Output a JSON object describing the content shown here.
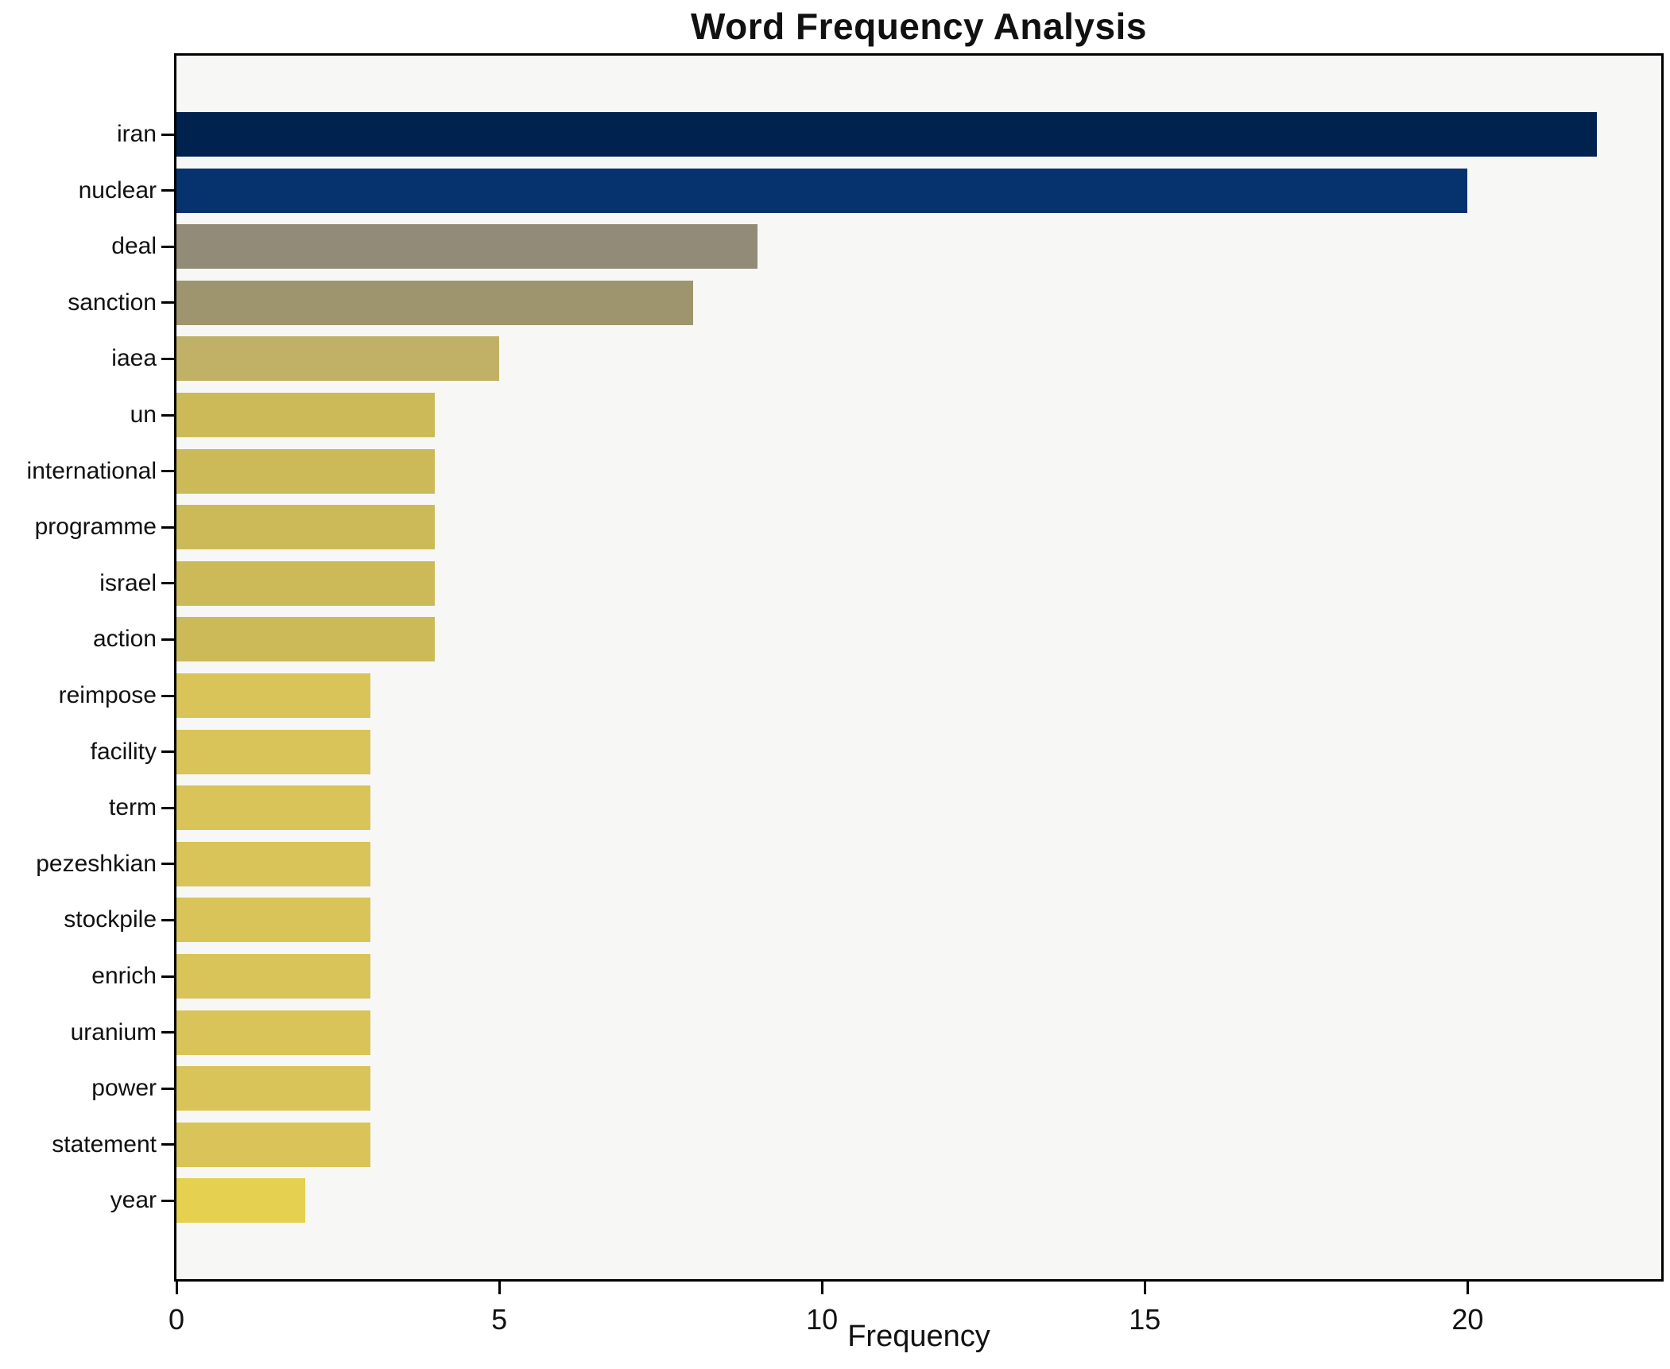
{
  "chart_data": {
    "type": "bar",
    "orientation": "horizontal",
    "title": "Word Frequency Analysis",
    "xlabel": "Frequency",
    "ylabel": "",
    "categories": [
      "iran",
      "nuclear",
      "deal",
      "sanction",
      "iaea",
      "un",
      "international",
      "programme",
      "israel",
      "action",
      "reimpose",
      "facility",
      "term",
      "pezeshkian",
      "stockpile",
      "enrich",
      "uranium",
      "power",
      "statement",
      "year"
    ],
    "values": [
      22,
      20,
      9,
      8,
      5,
      4,
      4,
      4,
      4,
      4,
      3,
      3,
      3,
      3,
      3,
      3,
      3,
      3,
      3,
      2
    ],
    "bar_colors": [
      "#00224e",
      "#06336e",
      "#918b77",
      "#9e956f",
      "#c1b166",
      "#ccba58",
      "#ccba58",
      "#ccba58",
      "#ccba58",
      "#ccba58",
      "#d8c458",
      "#d8c458",
      "#d8c458",
      "#d8c458",
      "#d8c458",
      "#d8c458",
      "#d8c458",
      "#d8c458",
      "#d8c458",
      "#e5d050"
    ],
    "xlim": [
      0,
      23
    ],
    "xticks": [
      0,
      5,
      10,
      15,
      20
    ],
    "grid": false,
    "legend": null,
    "plot_background": "#f7f7f6",
    "figure_background": "#ffffff",
    "spine_color": "#000000",
    "text_color": "#111111"
  }
}
